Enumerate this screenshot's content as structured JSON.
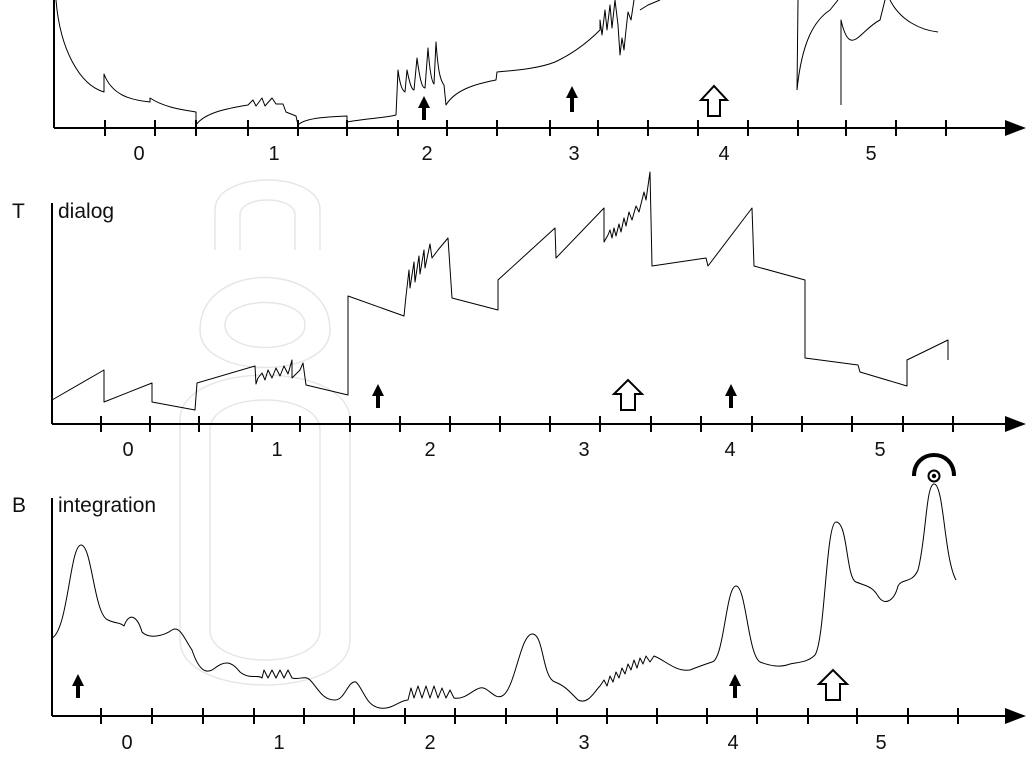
{
  "panels": [
    {
      "id": "top",
      "letter": "",
      "name": "",
      "ticks": [
        "0",
        "1",
        "2",
        "3",
        "4",
        "5"
      ],
      "solid_arrows": 2,
      "hollow_arrows": 1
    },
    {
      "id": "T",
      "letter": "T",
      "name": "dialog",
      "ticks": [
        "0",
        "1",
        "2",
        "3",
        "4",
        "5"
      ],
      "solid_arrows": 2,
      "hollow_arrows": 1
    },
    {
      "id": "B",
      "letter": "B",
      "name": "integration",
      "ticks": [
        "0",
        "1",
        "2",
        "3",
        "4",
        "5"
      ],
      "solid_arrows": 2,
      "hollow_arrows": 1,
      "fermata": true
    }
  ],
  "watermark": "open"
}
